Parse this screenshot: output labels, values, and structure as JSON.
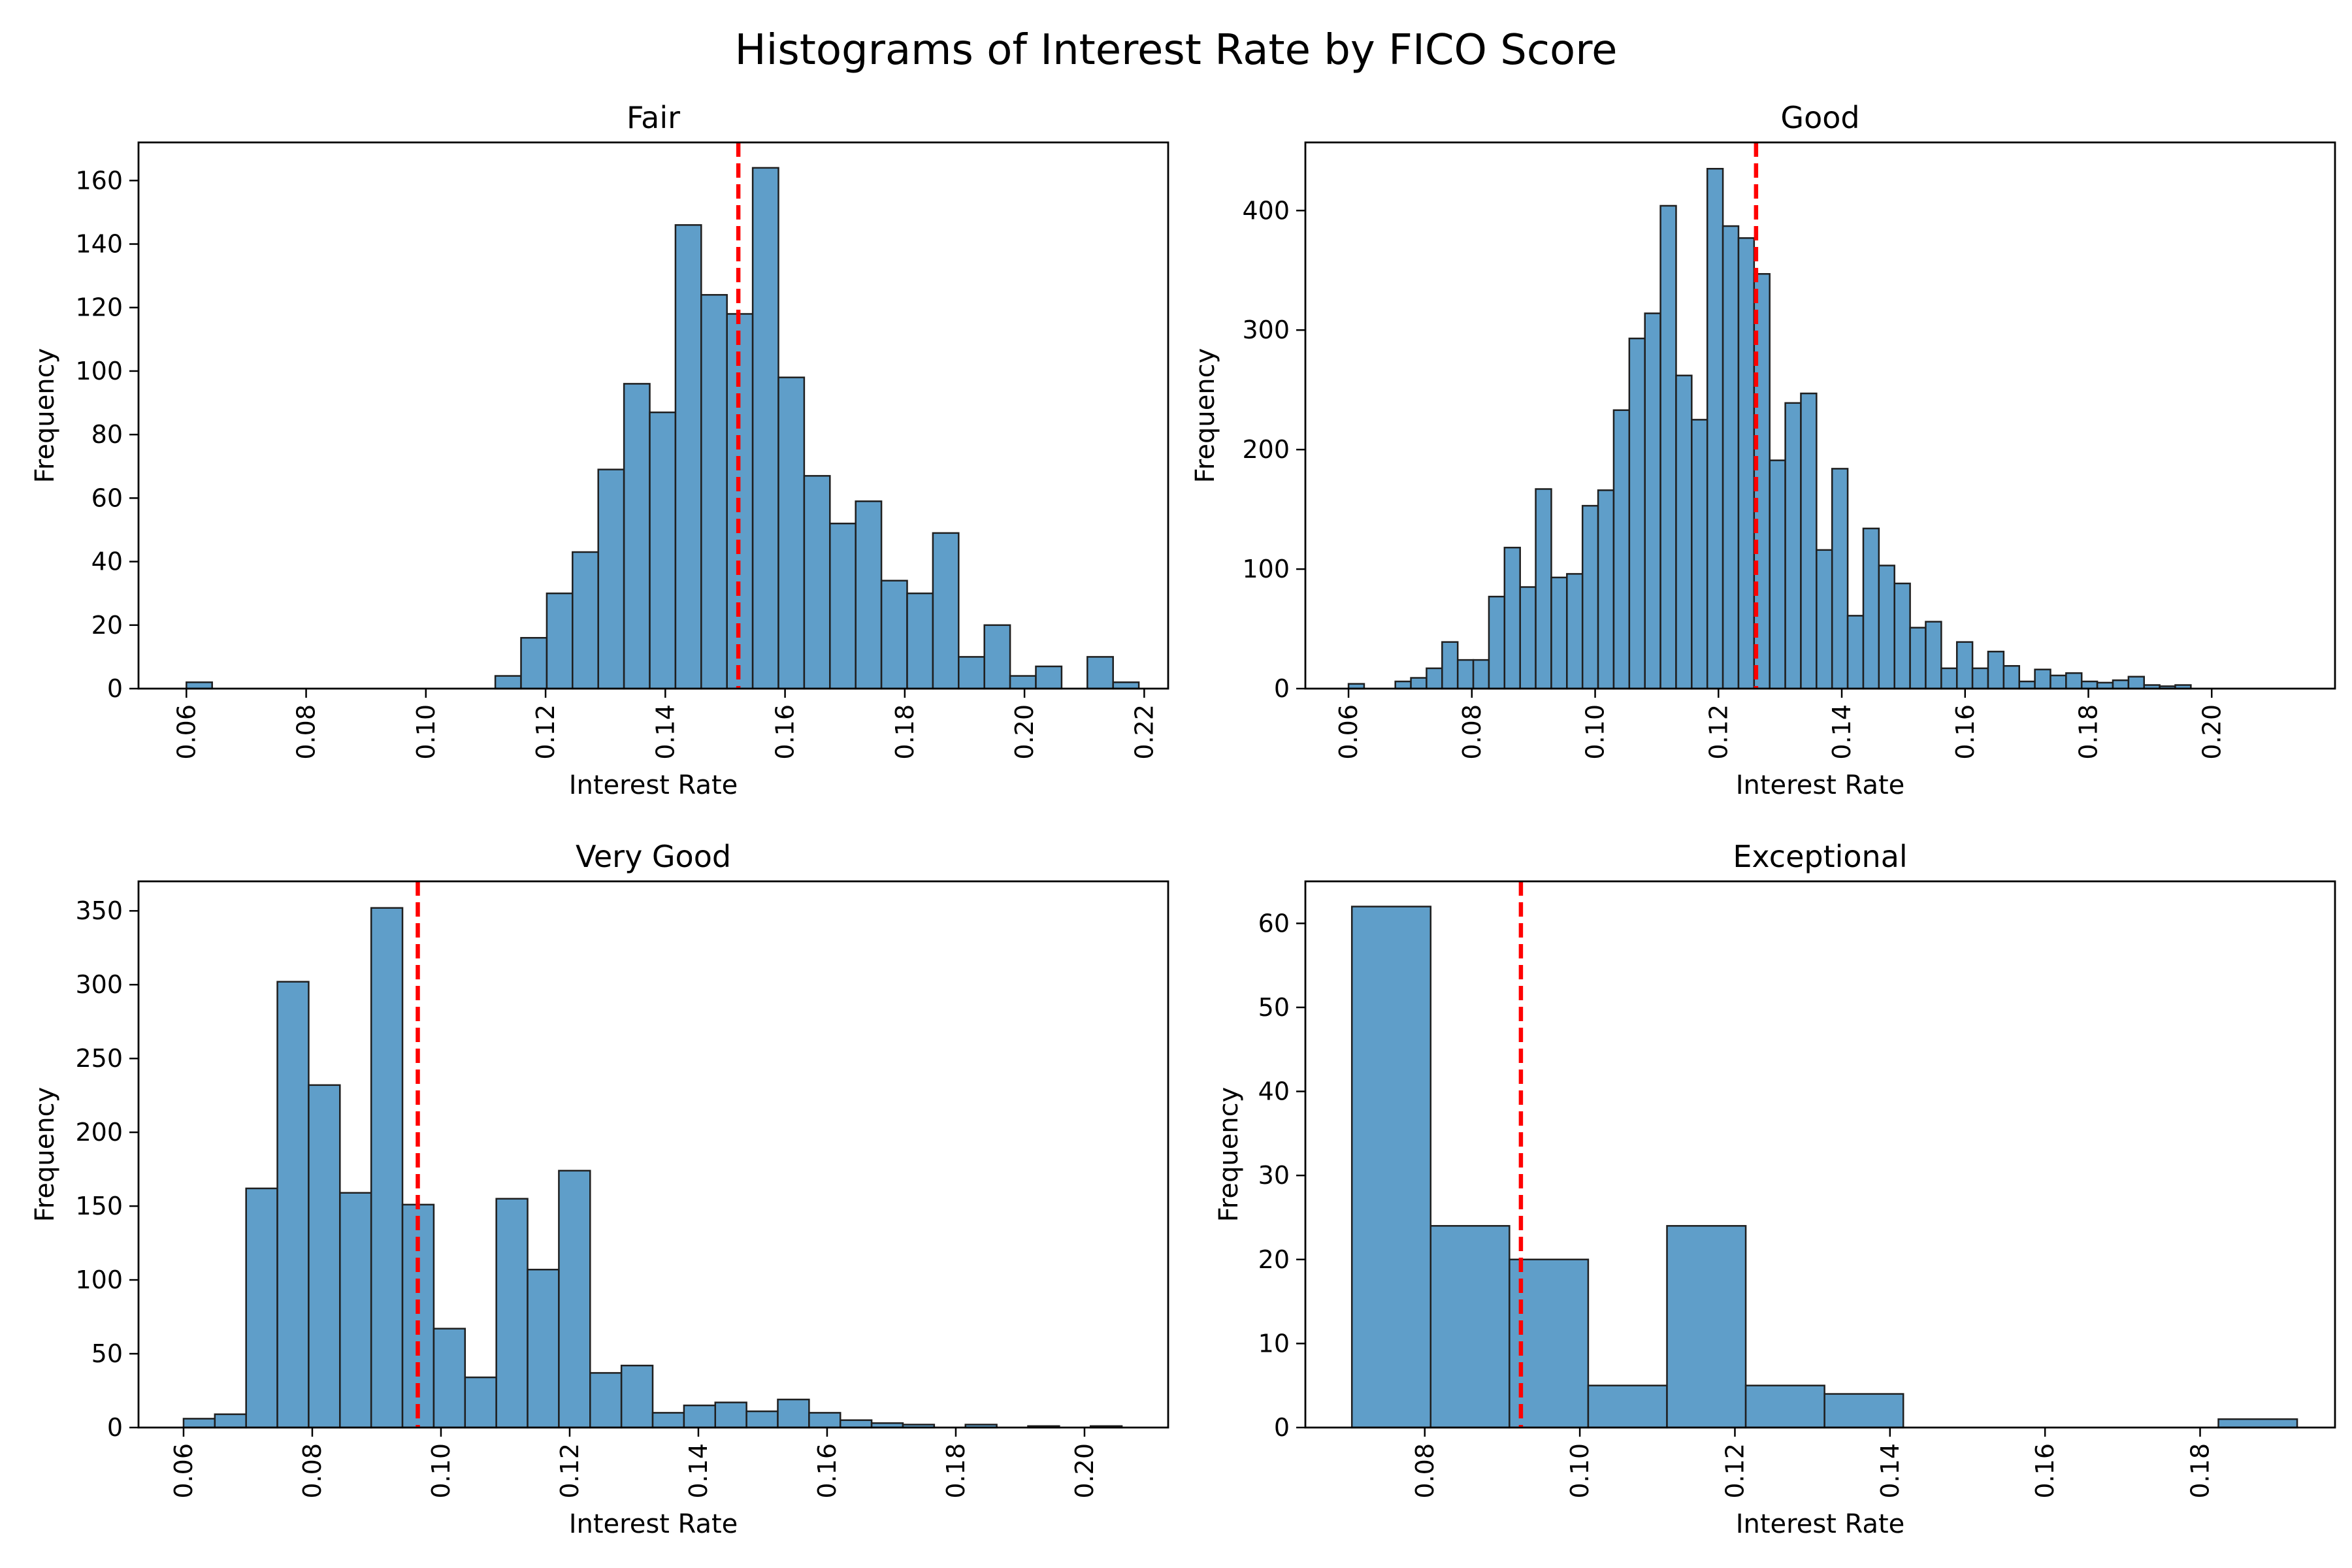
{
  "figure": {
    "title": "Histograms of Interest Rate by FICO Score"
  },
  "colors": {
    "bar": "#5f9ec9",
    "edge": "#1f1f1f",
    "mean_line": "#ff0000"
  },
  "chart_data": [
    {
      "type": "bar",
      "title": "Fair",
      "xlabel": "Interest Rate",
      "ylabel": "Frequency",
      "xlim": [
        0.052,
        0.224
      ],
      "ylim": [
        0,
        172
      ],
      "xticks": [
        0.06,
        0.08,
        0.1,
        0.12,
        0.14,
        0.16,
        0.18,
        0.2,
        0.22
      ],
      "yticks": [
        0,
        20,
        40,
        60,
        80,
        100,
        120,
        140,
        160
      ],
      "bin_start": 0.06,
      "bin_width": 0.0043,
      "values": [
        2,
        0,
        0,
        0,
        0,
        0,
        0,
        0,
        0,
        0,
        0,
        0,
        4,
        16,
        30,
        43,
        69,
        96,
        87,
        146,
        124,
        118,
        164,
        98,
        67,
        52,
        59,
        34,
        30,
        49,
        10,
        20,
        4,
        7,
        0,
        10,
        2
      ],
      "mean_line": 0.1522
    },
    {
      "type": "bar",
      "title": "Good",
      "xlabel": "Interest Rate",
      "ylabel": "Frequency",
      "xlim": [
        0.053,
        0.22
      ],
      "ylim": [
        0,
        457
      ],
      "xticks": [
        0.06,
        0.08,
        0.1,
        0.12,
        0.14,
        0.16,
        0.18,
        0.2
      ],
      "yticks": [
        0,
        100,
        200,
        300,
        400
      ],
      "bin_start": 0.06,
      "bin_width": 0.00253,
      "values": [
        4,
        0,
        0,
        6,
        9,
        17,
        39,
        24,
        24,
        77,
        118,
        85,
        167,
        93,
        96,
        153,
        166,
        233,
        293,
        314,
        404,
        262,
        225,
        435,
        387,
        377,
        347,
        191,
        239,
        247,
        116,
        184,
        61,
        134,
        103,
        88,
        51,
        56,
        17,
        39,
        17,
        31,
        19,
        6,
        16,
        11,
        13,
        6,
        5,
        7,
        10,
        3,
        2,
        3
      ],
      "mean_line": 0.1261
    },
    {
      "type": "bar",
      "title": "Very Good",
      "xlabel": "Interest Rate",
      "ylabel": "Frequency",
      "xlim": [
        0.053,
        0.213
      ],
      "ylim": [
        0,
        370
      ],
      "xticks": [
        0.06,
        0.08,
        0.1,
        0.12,
        0.14,
        0.16,
        0.18,
        0.2
      ],
      "yticks": [
        0,
        50,
        100,
        150,
        200,
        250,
        300,
        350
      ],
      "bin_start": 0.06,
      "bin_width": 0.00486,
      "values": [
        6,
        9,
        162,
        302,
        232,
        159,
        352,
        151,
        67,
        34,
        155,
        107,
        174,
        37,
        42,
        10,
        15,
        17,
        11,
        19,
        10,
        5,
        3,
        2,
        0,
        2,
        0,
        1,
        0,
        1
      ],
      "mean_line": 0.0964
    },
    {
      "type": "bar",
      "title": "Exceptional",
      "xlabel": "Interest Rate",
      "ylabel": "Frequency",
      "xlim": [
        0.0646,
        0.1974
      ],
      "ylim": [
        0,
        65
      ],
      "xticks": [
        0.08,
        0.1,
        0.12,
        0.14,
        0.16,
        0.18
      ],
      "yticks": [
        0,
        10,
        20,
        30,
        40,
        50,
        60
      ],
      "bin_start": 0.0706,
      "bin_width": 0.01016,
      "values": [
        62,
        24,
        20,
        5,
        24,
        5,
        4,
        0,
        0,
        0,
        0,
        1
      ],
      "mean_line": 0.0924
    }
  ]
}
